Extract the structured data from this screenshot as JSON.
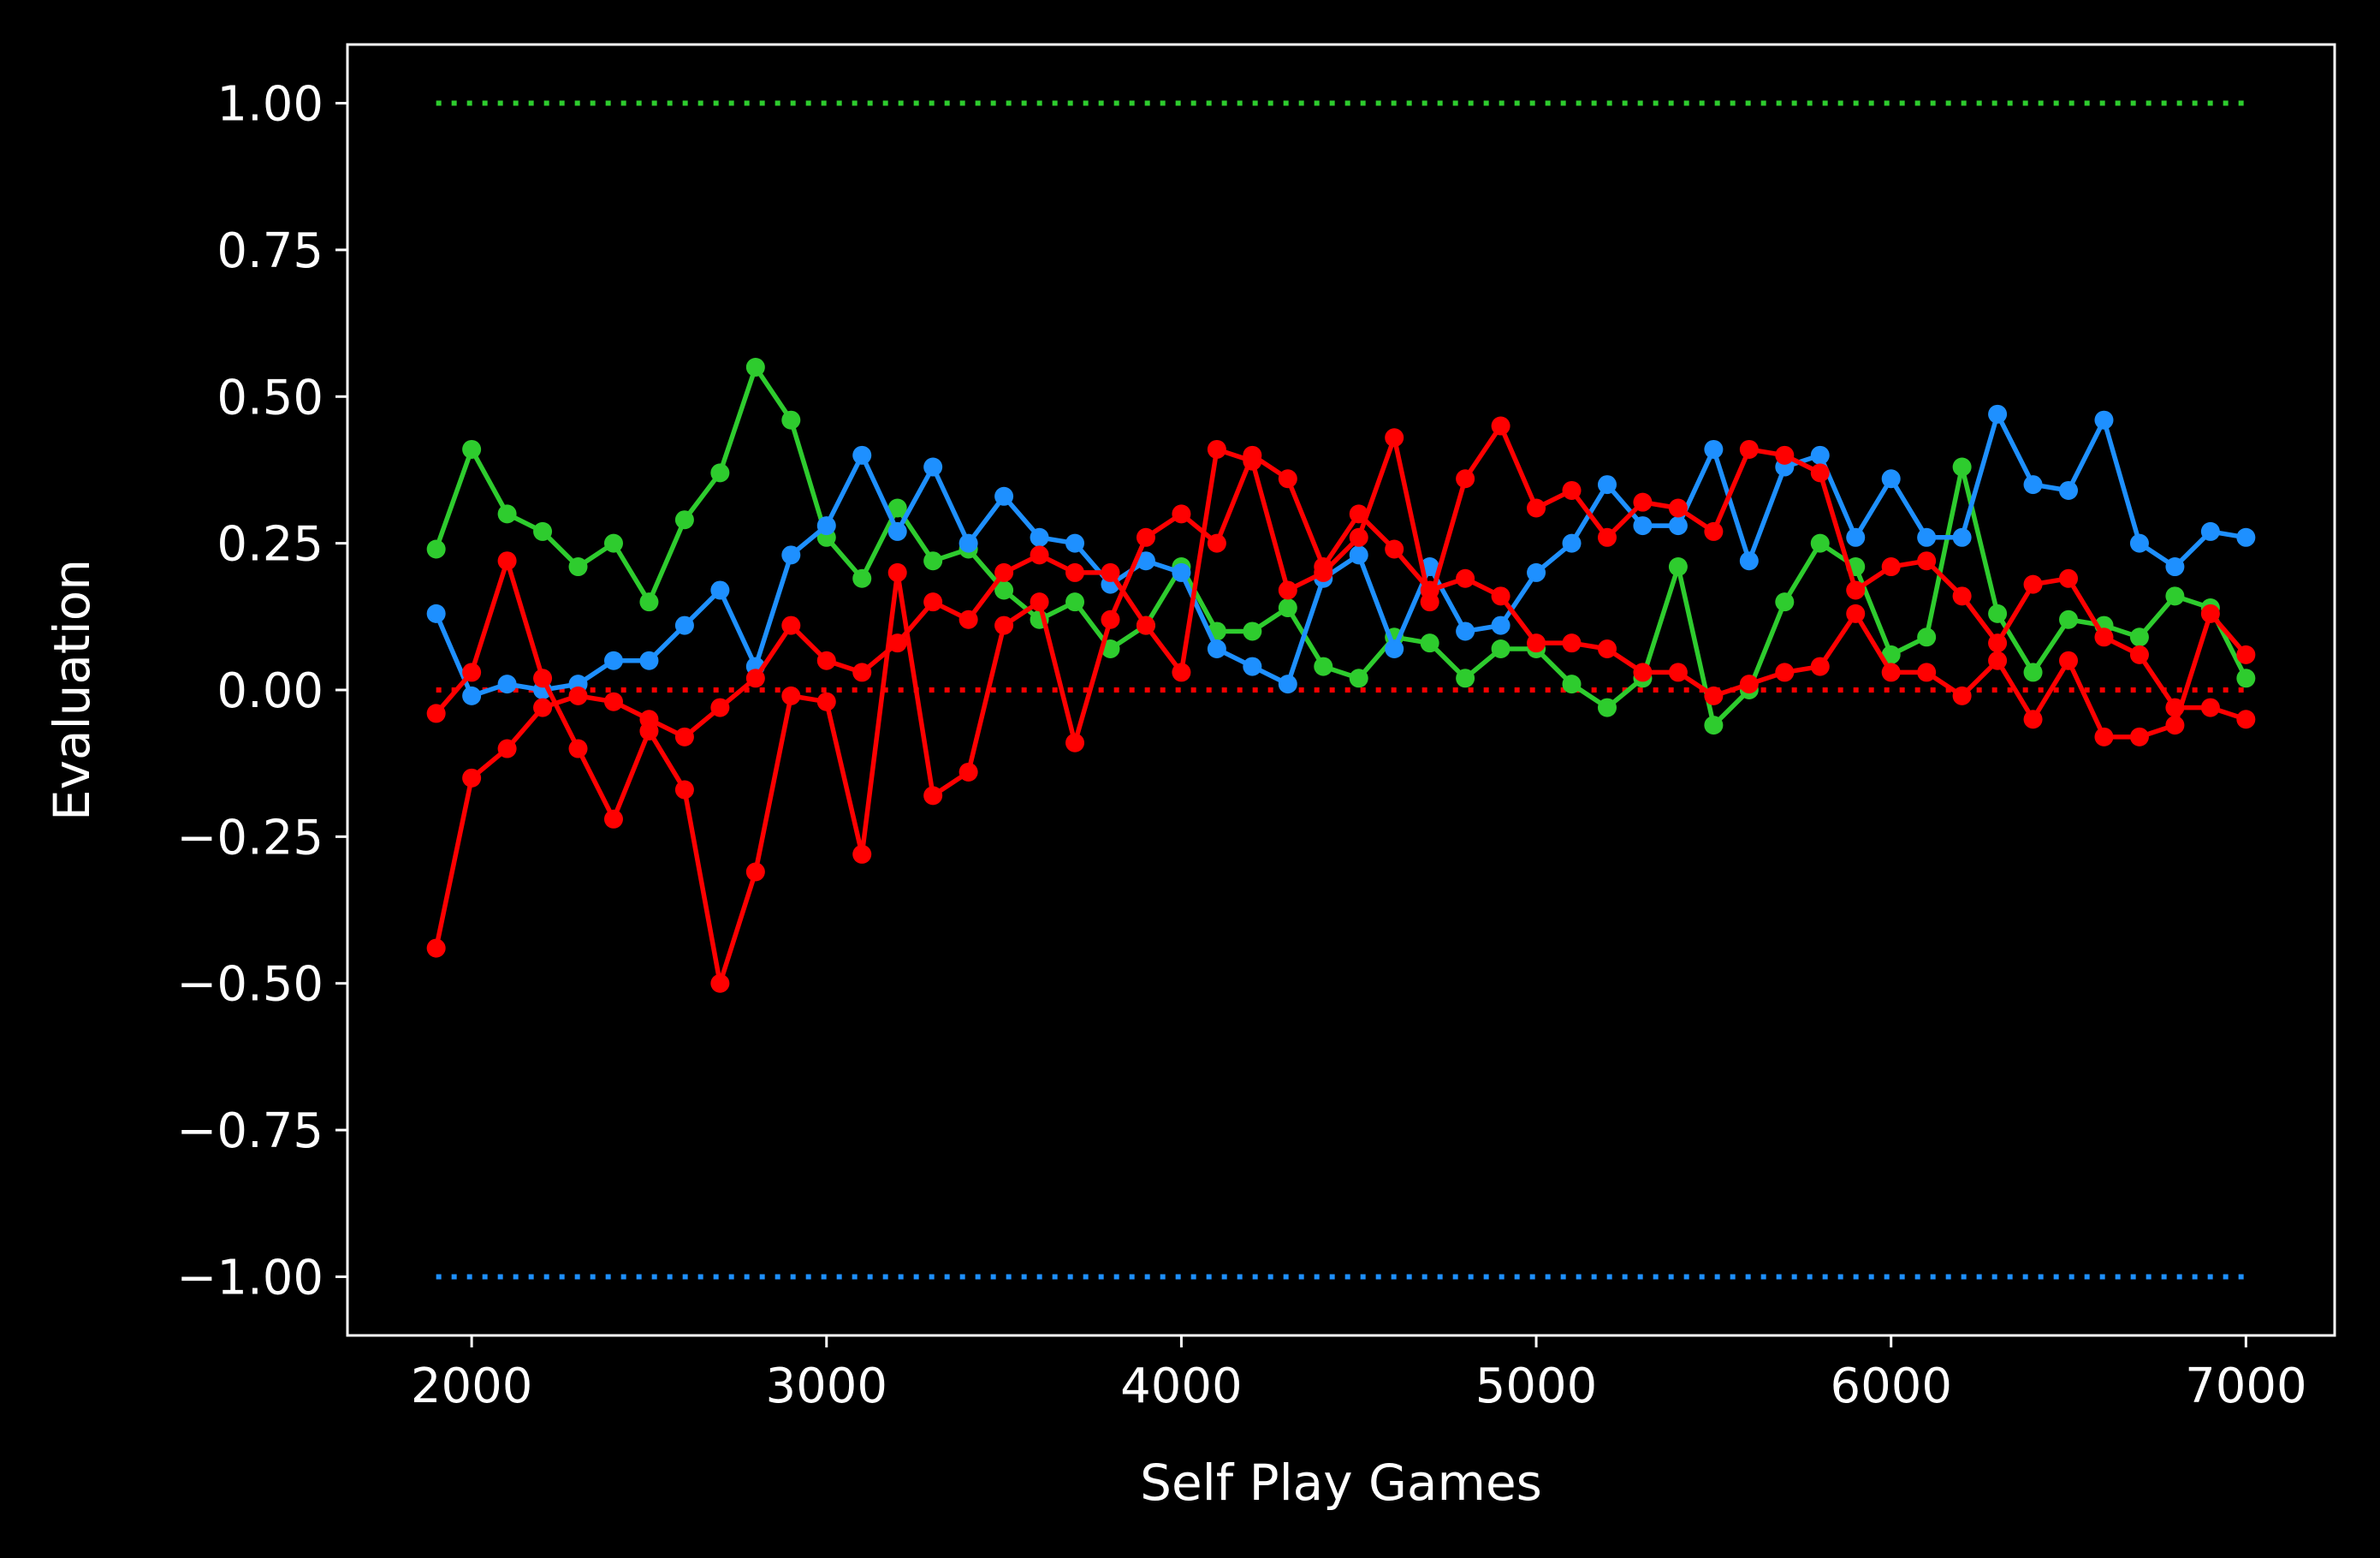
{
  "chart_data": {
    "type": "line",
    "title": "",
    "xlabel": "Self Play Games",
    "ylabel": "Evaluation",
    "xlim": [
      1650,
      7250
    ],
    "ylim": [
      -1.1,
      1.1
    ],
    "xticks": [
      2000,
      3000,
      4000,
      5000,
      6000,
      7000
    ],
    "xtick_labels": [
      "2000",
      "3000",
      "4000",
      "5000",
      "6000",
      "7000"
    ],
    "yticks": [
      1.0,
      0.75,
      0.5,
      0.25,
      0.0,
      -0.25,
      -0.5,
      -0.75,
      -1.0
    ],
    "ytick_labels": [
      "1.00",
      "0.75",
      "0.50",
      "0.25",
      "0.00",
      "−0.25",
      "−0.50",
      "−0.75",
      "−1.00"
    ],
    "grid": false,
    "background": "#000000",
    "x": [
      1900,
      2000,
      2100,
      2200,
      2300,
      2400,
      2500,
      2600,
      2700,
      2800,
      2900,
      3000,
      3100,
      3200,
      3300,
      3400,
      3500,
      3600,
      3700,
      3800,
      3900,
      4000,
      4100,
      4200,
      4300,
      4400,
      4500,
      4600,
      4700,
      4800,
      4900,
      5000,
      5100,
      5200,
      5300,
      5400,
      5500,
      5600,
      5700,
      5800,
      5900,
      6000,
      6100,
      6200,
      6300,
      6400,
      6500,
      6600,
      6700,
      6800,
      6900,
      7000
    ],
    "series": [
      {
        "color": "#2ecc2e",
        "marker": "circle",
        "values": [
          0.24,
          0.41,
          0.3,
          0.27,
          0.21,
          0.25,
          0.15,
          0.29,
          0.37,
          0.55,
          0.46,
          0.26,
          0.19,
          0.31,
          0.22,
          0.24,
          0.17,
          0.12,
          0.15,
          0.07,
          0.11,
          0.21,
          0.1,
          0.1,
          0.14,
          0.04,
          0.02,
          0.09,
          0.08,
          0.02,
          0.07,
          0.07,
          0.01,
          -0.03,
          0.02,
          0.21,
          -0.06,
          0.0,
          0.15,
          0.25,
          0.21,
          0.06,
          0.09,
          0.38,
          0.13,
          0.03,
          0.12,
          0.11,
          0.09,
          0.16,
          0.14,
          0.02
        ]
      },
      {
        "color": "#1e90ff",
        "marker": "circle",
        "values": [
          0.13,
          -0.01,
          0.01,
          0.0,
          0.01,
          0.05,
          0.05,
          0.11,
          0.17,
          0.04,
          0.23,
          0.28,
          0.4,
          0.27,
          0.38,
          0.25,
          0.33,
          0.26,
          0.25,
          0.18,
          0.22,
          0.2,
          0.07,
          0.04,
          0.01,
          0.19,
          0.23,
          0.07,
          0.21,
          0.1,
          0.11,
          0.2,
          0.25,
          0.35,
          0.28,
          0.28,
          0.41,
          0.22,
          0.38,
          0.4,
          0.26,
          0.36,
          0.26,
          0.26,
          0.47,
          0.35,
          0.34,
          0.46,
          0.25,
          0.21,
          0.27,
          0.26
        ]
      },
      {
        "color": "#ff0000",
        "marker": "circle",
        "values": [
          -0.44,
          -0.15,
          -0.1,
          -0.03,
          -0.01,
          -0.02,
          -0.05,
          -0.08,
          -0.03,
          0.02,
          0.11,
          0.05,
          0.03,
          0.08,
          0.15,
          0.12,
          0.2,
          0.23,
          0.2,
          0.2,
          0.11,
          0.03,
          0.41,
          0.39,
          0.17,
          0.2,
          0.26,
          0.43,
          0.15,
          0.36,
          0.45,
          0.31,
          0.34,
          0.26,
          0.32,
          0.31,
          0.27,
          0.41,
          0.4,
          0.37,
          0.17,
          0.21,
          0.22,
          0.16,
          0.08,
          0.18,
          0.19,
          0.09,
          0.06,
          -0.03,
          -0.03,
          -0.05
        ]
      },
      {
        "color": "#ff0000",
        "marker": "circle",
        "values": [
          -0.04,
          0.03,
          0.22,
          0.02,
          -0.1,
          -0.22,
          -0.07,
          -0.17,
          -0.5,
          -0.31,
          -0.01,
          -0.02,
          -0.28,
          0.2,
          -0.18,
          -0.14,
          0.11,
          0.15,
          -0.09,
          0.12,
          0.26,
          0.3,
          0.25,
          0.4,
          0.36,
          0.21,
          0.3,
          0.24,
          0.17,
          0.19,
          0.16,
          0.08,
          0.08,
          0.07,
          0.03,
          0.03,
          -0.01,
          0.01,
          0.03,
          0.04,
          0.13,
          0.03,
          0.03,
          -0.01,
          0.05,
          -0.05,
          0.05,
          -0.08,
          -0.08,
          -0.06,
          0.13,
          0.06
        ]
      }
    ],
    "reference_lines": [
      {
        "y": 1.0,
        "color": "#2ecc2e",
        "style": "dotted",
        "x_range": [
          1900,
          7000
        ]
      },
      {
        "y": 0.0,
        "color": "#ff0000",
        "style": "dotted",
        "x_range": [
          1900,
          7000
        ]
      },
      {
        "y": -1.0,
        "color": "#1e90ff",
        "style": "dotted",
        "x_range": [
          1900,
          7000
        ]
      }
    ]
  }
}
